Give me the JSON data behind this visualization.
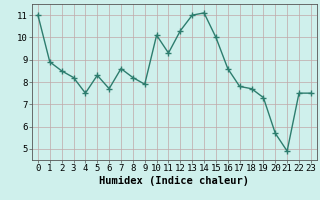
{
  "x": [
    0,
    1,
    2,
    3,
    4,
    5,
    6,
    7,
    8,
    9,
    10,
    11,
    12,
    13,
    14,
    15,
    16,
    17,
    18,
    19,
    20,
    21,
    22,
    23
  ],
  "y": [
    11.0,
    8.9,
    8.5,
    8.2,
    7.5,
    8.3,
    7.7,
    8.6,
    8.2,
    7.9,
    10.1,
    9.3,
    10.3,
    11.0,
    11.1,
    10.0,
    8.6,
    7.8,
    7.7,
    7.3,
    5.7,
    4.9,
    7.5,
    7.5
  ],
  "line_color": "#2d7d6e",
  "marker": "+",
  "marker_color": "#2d7d6e",
  "bg_color": "#cff0ec",
  "plot_bg_color": "#cff0ec",
  "grid_color": "#c0a8a8",
  "xlabel": "Humidex (Indice chaleur)",
  "xlabel_fontsize": 7.5,
  "xlim": [
    -0.5,
    23.5
  ],
  "ylim": [
    4.5,
    11.5
  ],
  "yticks": [
    5,
    6,
    7,
    8,
    9,
    10,
    11
  ],
  "xticks": [
    0,
    1,
    2,
    3,
    4,
    5,
    6,
    7,
    8,
    9,
    10,
    11,
    12,
    13,
    14,
    15,
    16,
    17,
    18,
    19,
    20,
    21,
    22,
    23
  ],
  "tick_fontsize": 6.5,
  "linewidth": 1.0,
  "markersize": 4,
  "spine_color": "#555555"
}
